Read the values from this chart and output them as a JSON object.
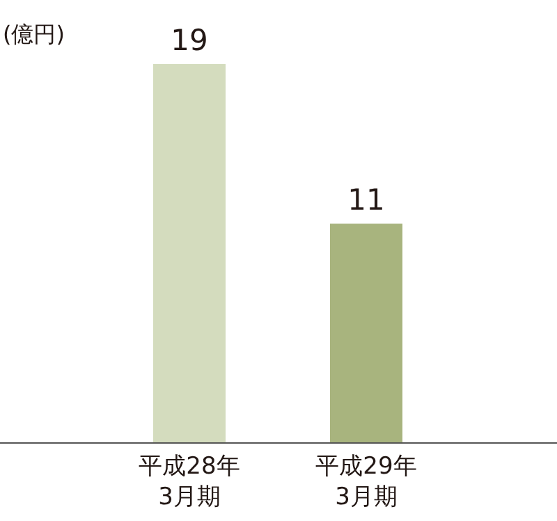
{
  "chart_data": {
    "type": "bar",
    "ylabel": "(億円)",
    "categories": [
      "平成28年\n3月期",
      "平成29年\n3月期"
    ],
    "values": [
      19,
      11
    ],
    "colors": [
      "#d4dcbe",
      "#a8b47e"
    ],
    "data_labels": true
  }
}
